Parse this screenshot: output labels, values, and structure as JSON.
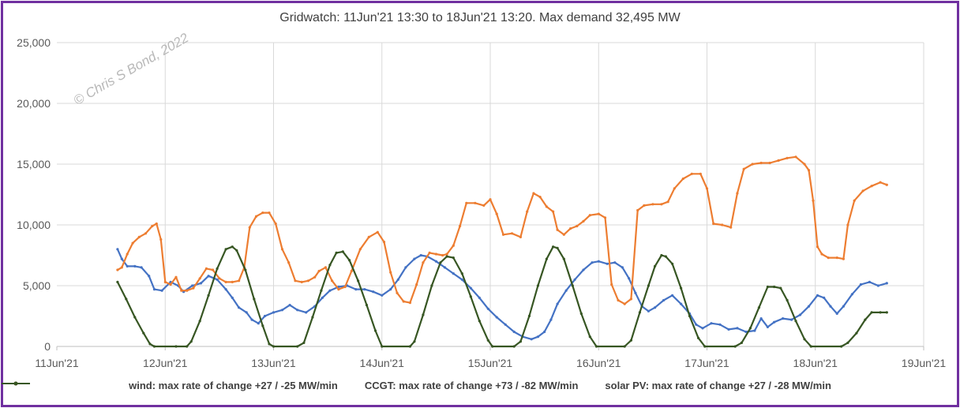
{
  "chart_data": {
    "type": "line",
    "title": "Gridwatch:  11Jun'21 13:30  to 18Jun'21 13:20.   Max demand 32,495 MW",
    "watermark": "© Chris S Bond, 2022",
    "x_tick_labels": [
      "11Jun'21",
      "12Jun'21",
      "13Jun'21",
      "14Jun'21",
      "15Jun'21",
      "16Jun'21",
      "17Jun'21",
      "18Jun'21",
      "19Jun'21"
    ],
    "y_tick_labels": [
      "0",
      "5,000",
      "10,000",
      "15,000",
      "20,000",
      "25,000"
    ],
    "ylim": [
      0,
      25000
    ],
    "xlim": [
      0,
      8
    ],
    "x_unit_note": "days",
    "grid": true,
    "legend_position": "bottom",
    "series": [
      {
        "name": "wind: max rate of change +27 / -25 MW/min",
        "color": "#4472c4",
        "points": [
          [
            0.56,
            8000
          ],
          [
            0.6,
            7200
          ],
          [
            0.65,
            6600
          ],
          [
            0.72,
            6600
          ],
          [
            0.78,
            6500
          ],
          [
            0.85,
            5800
          ],
          [
            0.9,
            4700
          ],
          [
            0.97,
            4600
          ],
          [
            1.05,
            5300
          ],
          [
            1.12,
            5000
          ],
          [
            1.17,
            4500
          ],
          [
            1.25,
            5000
          ],
          [
            1.33,
            5200
          ],
          [
            1.4,
            5800
          ],
          [
            1.48,
            5500
          ],
          [
            1.56,
            4700
          ],
          [
            1.62,
            4000
          ],
          [
            1.68,
            3200
          ],
          [
            1.75,
            2800
          ],
          [
            1.8,
            2200
          ],
          [
            1.86,
            1900
          ],
          [
            1.92,
            2500
          ],
          [
            2.0,
            2800
          ],
          [
            2.08,
            3000
          ],
          [
            2.15,
            3400
          ],
          [
            2.22,
            3000
          ],
          [
            2.3,
            2800
          ],
          [
            2.38,
            3300
          ],
          [
            2.45,
            4000
          ],
          [
            2.52,
            4600
          ],
          [
            2.6,
            4900
          ],
          [
            2.68,
            5000
          ],
          [
            2.76,
            4700
          ],
          [
            2.84,
            4700
          ],
          [
            2.92,
            4500
          ],
          [
            3.0,
            4200
          ],
          [
            3.08,
            4700
          ],
          [
            3.15,
            5500
          ],
          [
            3.22,
            6500
          ],
          [
            3.3,
            7200
          ],
          [
            3.36,
            7500
          ],
          [
            3.42,
            7400
          ],
          [
            3.5,
            7000
          ],
          [
            3.58,
            6500
          ],
          [
            3.66,
            6000
          ],
          [
            3.74,
            5500
          ],
          [
            3.82,
            4800
          ],
          [
            3.9,
            4000
          ],
          [
            3.98,
            3100
          ],
          [
            4.06,
            2400
          ],
          [
            4.14,
            1800
          ],
          [
            4.22,
            1200
          ],
          [
            4.3,
            800
          ],
          [
            4.38,
            600
          ],
          [
            4.44,
            800
          ],
          [
            4.5,
            1200
          ],
          [
            4.56,
            2200
          ],
          [
            4.62,
            3500
          ],
          [
            4.7,
            4600
          ],
          [
            4.78,
            5500
          ],
          [
            4.86,
            6300
          ],
          [
            4.94,
            6900
          ],
          [
            5.0,
            7000
          ],
          [
            5.08,
            6800
          ],
          [
            5.15,
            6900
          ],
          [
            5.22,
            6500
          ],
          [
            5.28,
            5600
          ],
          [
            5.34,
            4400
          ],
          [
            5.4,
            3300
          ],
          [
            5.46,
            2900
          ],
          [
            5.52,
            3200
          ],
          [
            5.6,
            3800
          ],
          [
            5.68,
            4200
          ],
          [
            5.76,
            3500
          ],
          [
            5.84,
            2700
          ],
          [
            5.9,
            1800
          ],
          [
            5.96,
            1500
          ],
          [
            6.04,
            1900
          ],
          [
            6.12,
            1800
          ],
          [
            6.2,
            1400
          ],
          [
            6.28,
            1500
          ],
          [
            6.36,
            1200
          ],
          [
            6.44,
            1300
          ],
          [
            6.5,
            2300
          ],
          [
            6.56,
            1600
          ],
          [
            6.62,
            2000
          ],
          [
            6.7,
            2300
          ],
          [
            6.78,
            2200
          ],
          [
            6.86,
            2600
          ],
          [
            6.94,
            3300
          ],
          [
            7.02,
            4200
          ],
          [
            7.08,
            4000
          ],
          [
            7.14,
            3300
          ],
          [
            7.2,
            2700
          ],
          [
            7.26,
            3300
          ],
          [
            7.34,
            4300
          ],
          [
            7.42,
            5100
          ],
          [
            7.5,
            5300
          ],
          [
            7.58,
            5000
          ],
          [
            7.66,
            5200
          ]
        ]
      },
      {
        "name": "CCGT: max rate of change +73 / -82 MW/min",
        "color": "#ed7d31",
        "points": [
          [
            0.56,
            6300
          ],
          [
            0.6,
            6500
          ],
          [
            0.65,
            7600
          ],
          [
            0.7,
            8500
          ],
          [
            0.76,
            9000
          ],
          [
            0.82,
            9300
          ],
          [
            0.88,
            9900
          ],
          [
            0.92,
            10100
          ],
          [
            0.96,
            8800
          ],
          [
            1.0,
            5300
          ],
          [
            1.05,
            5100
          ],
          [
            1.1,
            5700
          ],
          [
            1.15,
            4600
          ],
          [
            1.2,
            4600
          ],
          [
            1.26,
            4800
          ],
          [
            1.32,
            5600
          ],
          [
            1.38,
            6400
          ],
          [
            1.44,
            6300
          ],
          [
            1.5,
            5600
          ],
          [
            1.56,
            5300
          ],
          [
            1.62,
            5300
          ],
          [
            1.68,
            5400
          ],
          [
            1.73,
            6500
          ],
          [
            1.78,
            9800
          ],
          [
            1.84,
            10700
          ],
          [
            1.9,
            11000
          ],
          [
            1.96,
            11000
          ],
          [
            2.02,
            10100
          ],
          [
            2.08,
            8000
          ],
          [
            2.14,
            6900
          ],
          [
            2.2,
            5400
          ],
          [
            2.26,
            5300
          ],
          [
            2.32,
            5400
          ],
          [
            2.38,
            5700
          ],
          [
            2.42,
            6200
          ],
          [
            2.48,
            6500
          ],
          [
            2.54,
            5400
          ],
          [
            2.6,
            4700
          ],
          [
            2.66,
            4900
          ],
          [
            2.72,
            6200
          ],
          [
            2.8,
            8000
          ],
          [
            2.88,
            9000
          ],
          [
            2.96,
            9400
          ],
          [
            3.02,
            8600
          ],
          [
            3.08,
            6100
          ],
          [
            3.14,
            4400
          ],
          [
            3.2,
            3700
          ],
          [
            3.26,
            3600
          ],
          [
            3.32,
            5100
          ],
          [
            3.38,
            6900
          ],
          [
            3.44,
            7700
          ],
          [
            3.5,
            7600
          ],
          [
            3.56,
            7500
          ],
          [
            3.6,
            7600
          ],
          [
            3.66,
            8300
          ],
          [
            3.72,
            9900
          ],
          [
            3.78,
            11800
          ],
          [
            3.86,
            11800
          ],
          [
            3.94,
            11600
          ],
          [
            4.0,
            12100
          ],
          [
            4.06,
            10900
          ],
          [
            4.12,
            9200
          ],
          [
            4.2,
            9300
          ],
          [
            4.28,
            9000
          ],
          [
            4.34,
            11100
          ],
          [
            4.4,
            12600
          ],
          [
            4.46,
            12300
          ],
          [
            4.52,
            11500
          ],
          [
            4.58,
            11100
          ],
          [
            4.62,
            9600
          ],
          [
            4.68,
            9200
          ],
          [
            4.74,
            9700
          ],
          [
            4.8,
            9900
          ],
          [
            4.86,
            10300
          ],
          [
            4.92,
            10800
          ],
          [
            5.0,
            10900
          ],
          [
            5.06,
            10600
          ],
          [
            5.12,
            5100
          ],
          [
            5.18,
            3800
          ],
          [
            5.24,
            3500
          ],
          [
            5.3,
            3900
          ],
          [
            5.36,
            11200
          ],
          [
            5.42,
            11600
          ],
          [
            5.5,
            11700
          ],
          [
            5.58,
            11700
          ],
          [
            5.64,
            11900
          ],
          [
            5.7,
            13000
          ],
          [
            5.78,
            13800
          ],
          [
            5.86,
            14200
          ],
          [
            5.94,
            14200
          ],
          [
            6.0,
            13000
          ],
          [
            6.06,
            10100
          ],
          [
            6.14,
            10000
          ],
          [
            6.22,
            9800
          ],
          [
            6.28,
            12600
          ],
          [
            6.34,
            14600
          ],
          [
            6.42,
            15000
          ],
          [
            6.5,
            15100
          ],
          [
            6.58,
            15100
          ],
          [
            6.66,
            15300
          ],
          [
            6.74,
            15500
          ],
          [
            6.82,
            15600
          ],
          [
            6.9,
            15000
          ],
          [
            6.94,
            14500
          ],
          [
            6.98,
            12000
          ],
          [
            7.02,
            8200
          ],
          [
            7.06,
            7600
          ],
          [
            7.12,
            7300
          ],
          [
            7.2,
            7300
          ],
          [
            7.26,
            7200
          ],
          [
            7.3,
            10000
          ],
          [
            7.36,
            12000
          ],
          [
            7.44,
            12800
          ],
          [
            7.52,
            13200
          ],
          [
            7.6,
            13500
          ],
          [
            7.66,
            13300
          ]
        ]
      },
      {
        "name": "solar PV: max rate of change +27 / -28 MW/min",
        "color": "#375623",
        "points": [
          [
            0.56,
            5300
          ],
          [
            0.64,
            3900
          ],
          [
            0.72,
            2400
          ],
          [
            0.8,
            1100
          ],
          [
            0.86,
            200
          ],
          [
            0.9,
            0
          ],
          [
            1.1,
            0
          ],
          [
            1.2,
            0
          ],
          [
            1.24,
            400
          ],
          [
            1.32,
            2100
          ],
          [
            1.4,
            4200
          ],
          [
            1.48,
            6400
          ],
          [
            1.56,
            8000
          ],
          [
            1.62,
            8200
          ],
          [
            1.66,
            7900
          ],
          [
            1.74,
            6300
          ],
          [
            1.82,
            3900
          ],
          [
            1.9,
            1700
          ],
          [
            1.96,
            200
          ],
          [
            2.0,
            0
          ],
          [
            2.22,
            0
          ],
          [
            2.28,
            300
          ],
          [
            2.36,
            2400
          ],
          [
            2.44,
            4600
          ],
          [
            2.52,
            6700
          ],
          [
            2.58,
            7700
          ],
          [
            2.64,
            7800
          ],
          [
            2.7,
            7100
          ],
          [
            2.78,
            5400
          ],
          [
            2.86,
            3400
          ],
          [
            2.94,
            1300
          ],
          [
            3.0,
            0
          ],
          [
            3.26,
            0
          ],
          [
            3.3,
            400
          ],
          [
            3.38,
            2600
          ],
          [
            3.46,
            5000
          ],
          [
            3.54,
            6900
          ],
          [
            3.6,
            7400
          ],
          [
            3.66,
            7300
          ],
          [
            3.74,
            6000
          ],
          [
            3.82,
            4100
          ],
          [
            3.9,
            2100
          ],
          [
            3.98,
            500
          ],
          [
            4.02,
            0
          ],
          [
            4.22,
            0
          ],
          [
            4.28,
            400
          ],
          [
            4.36,
            2500
          ],
          [
            4.44,
            5000
          ],
          [
            4.52,
            7200
          ],
          [
            4.58,
            8200
          ],
          [
            4.62,
            8100
          ],
          [
            4.68,
            7200
          ],
          [
            4.76,
            5000
          ],
          [
            4.84,
            2700
          ],
          [
            4.92,
            800
          ],
          [
            4.98,
            0
          ],
          [
            5.24,
            0
          ],
          [
            5.3,
            500
          ],
          [
            5.38,
            2800
          ],
          [
            5.46,
            5000
          ],
          [
            5.52,
            6600
          ],
          [
            5.58,
            7500
          ],
          [
            5.62,
            7400
          ],
          [
            5.68,
            6800
          ],
          [
            5.76,
            4800
          ],
          [
            5.84,
            2500
          ],
          [
            5.92,
            700
          ],
          [
            5.98,
            0
          ],
          [
            6.26,
            0
          ],
          [
            6.32,
            300
          ],
          [
            6.4,
            1500
          ],
          [
            6.48,
            3200
          ],
          [
            6.56,
            4900
          ],
          [
            6.62,
            4900
          ],
          [
            6.68,
            4800
          ],
          [
            6.74,
            3800
          ],
          [
            6.82,
            2100
          ],
          [
            6.9,
            600
          ],
          [
            6.96,
            0
          ],
          [
            7.24,
            0
          ],
          [
            7.3,
            300
          ],
          [
            7.38,
            1100
          ],
          [
            7.46,
            2200
          ],
          [
            7.52,
            2800
          ],
          [
            7.6,
            2800
          ],
          [
            7.66,
            2800
          ]
        ]
      }
    ]
  }
}
